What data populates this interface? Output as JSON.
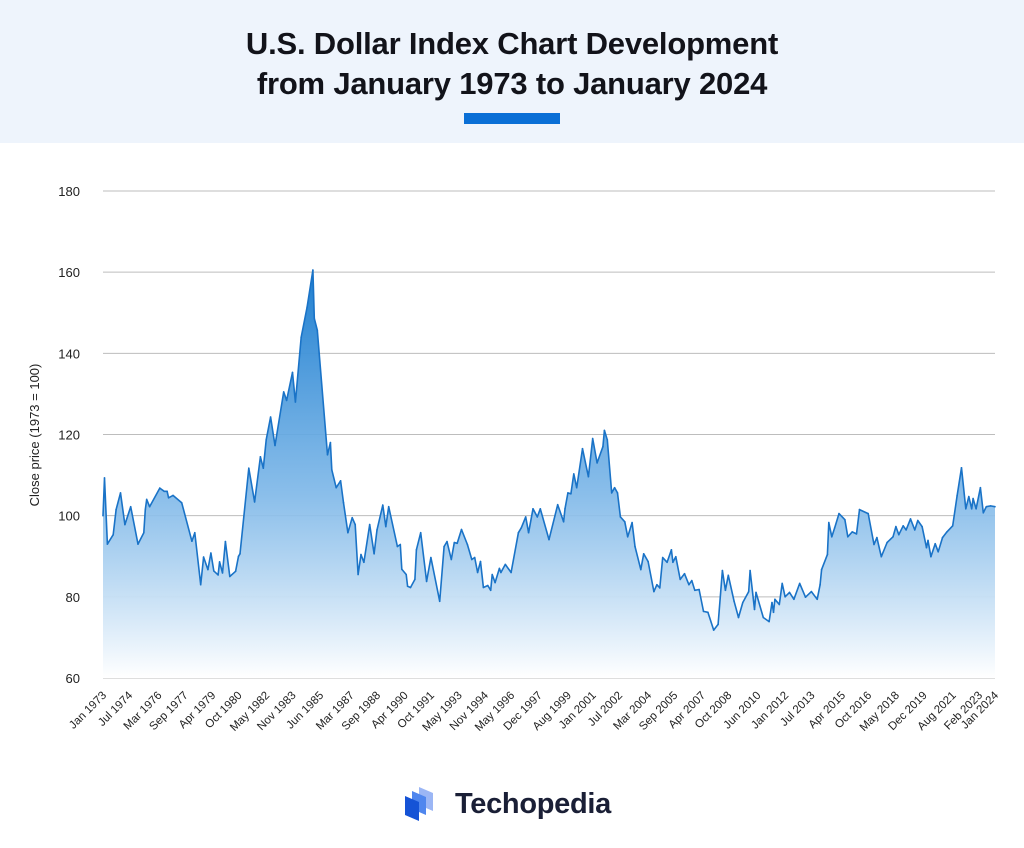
{
  "header": {
    "title_line1": "U.S. Dollar Index Chart Development",
    "title_line2": "from January 1973 to January 2024",
    "accent_color": "#0a6fd6",
    "background_color": "#eef4fc"
  },
  "brand": {
    "name": "Techopedia",
    "icon": "stacked-panels-logo-icon"
  },
  "chart_data": {
    "type": "area",
    "title": "U.S. Dollar Index Chart Development from January 1973 to January 2024",
    "xlabel": "",
    "ylabel": "Close price (1973 = 100)",
    "ylim": [
      60,
      180
    ],
    "yticks": [
      60,
      80,
      100,
      120,
      140,
      160,
      180
    ],
    "xlim": [
      "1973-01",
      "2024-01"
    ],
    "xtick_labels": [
      "Jan 1973",
      "Jul 1974",
      "Mar 1976",
      "Sep 1977",
      "Apr 1979",
      "Oct 1980",
      "May 1982",
      "Nov 1983",
      "Jun 1985",
      "Mar 1987",
      "Sep 1988",
      "Apr 1990",
      "Oct 1991",
      "May 1993",
      "Nov 1994",
      "May 1996",
      "Dec 1997",
      "Aug 1999",
      "Jan 2001",
      "Jul 2002",
      "Mar 2004",
      "Sep 2005",
      "Apr 2007",
      "Oct 2008",
      "Jun 2010",
      "Jan 2012",
      "Jul 2013",
      "Apr 2015",
      "Oct 2016",
      "May 2018",
      "Dec 2019",
      "Aug 2021",
      "Feb 2023",
      "Jan 2024"
    ],
    "grid": true,
    "line_color": "#1a73c7",
    "fill_color_top": "#1f7fd0",
    "fill_color_bottom": "#ffffff",
    "points": [
      [
        "1973-01",
        100
      ],
      [
        "1973-02",
        109.3
      ],
      [
        "1973-04",
        93
      ],
      [
        "1973-08",
        95.3
      ],
      [
        "1973-10",
        101.5
      ],
      [
        "1974-01",
        105.6
      ],
      [
        "1974-04",
        97.8
      ],
      [
        "1974-08",
        102.2
      ],
      [
        "1975-01",
        93
      ],
      [
        "1975-05",
        95.8
      ],
      [
        "1975-06",
        101.5
      ],
      [
        "1975-07",
        104
      ],
      [
        "1975-09",
        102.2
      ],
      [
        "1976-04",
        106.8
      ],
      [
        "1976-07",
        106
      ],
      [
        "1976-09",
        106
      ],
      [
        "1976-10",
        104.4
      ],
      [
        "1977-01",
        105
      ],
      [
        "1977-07",
        103.2
      ],
      [
        "1978-02",
        93.7
      ],
      [
        "1978-04",
        95.8
      ],
      [
        "1978-08",
        83
      ],
      [
        "1978-10",
        89.8
      ],
      [
        "1979-01",
        86.7
      ],
      [
        "1979-03",
        90.8
      ],
      [
        "1979-05",
        86.4
      ],
      [
        "1979-08",
        85.4
      ],
      [
        "1979-09",
        88.6
      ],
      [
        "1979-11",
        85.9
      ],
      [
        "1980-01",
        93.6
      ],
      [
        "1980-04",
        85
      ],
      [
        "1980-08",
        86.3
      ],
      [
        "1980-10",
        90
      ],
      [
        "1980-11",
        90.6
      ],
      [
        "1981-05",
        111.7
      ],
      [
        "1981-09",
        103.4
      ],
      [
        "1982-01",
        114.5
      ],
      [
        "1982-03",
        111.7
      ],
      [
        "1982-05",
        118.7
      ],
      [
        "1982-08",
        124.3
      ],
      [
        "1982-11",
        117.3
      ],
      [
        "1983-05",
        130.5
      ],
      [
        "1983-07",
        128.4
      ],
      [
        "1983-11",
        135.3
      ],
      [
        "1984-01",
        128
      ],
      [
        "1984-05",
        144
      ],
      [
        "1984-09",
        151.4
      ],
      [
        "1985-01",
        160.5
      ],
      [
        "1985-02",
        148.6
      ],
      [
        "1985-04",
        145.7
      ],
      [
        "1985-11",
        115
      ],
      [
        "1986-01",
        118
      ],
      [
        "1986-02",
        111.3
      ],
      [
        "1986-05",
        106.9
      ],
      [
        "1986-08",
        108.6
      ],
      [
        "1986-10",
        103.2
      ],
      [
        "1987-01",
        95.8
      ],
      [
        "1987-04",
        99.5
      ],
      [
        "1987-06",
        97.8
      ],
      [
        "1987-08",
        85.5
      ],
      [
        "1987-10",
        90.4
      ],
      [
        "1987-12",
        88.5
      ],
      [
        "1988-04",
        97.8
      ],
      [
        "1988-07",
        90.6
      ],
      [
        "1988-09",
        96.5
      ],
      [
        "1989-01",
        102.6
      ],
      [
        "1989-03",
        97.3
      ],
      [
        "1989-05",
        102.2
      ],
      [
        "1989-11",
        92.4
      ],
      [
        "1990-01",
        92.9
      ],
      [
        "1990-02",
        86.8
      ],
      [
        "1990-05",
        85.5
      ],
      [
        "1990-06",
        82.6
      ],
      [
        "1990-08",
        82.3
      ],
      [
        "1990-11",
        84.3
      ],
      [
        "1990-12",
        91.6
      ],
      [
        "1991-03",
        95.8
      ],
      [
        "1991-07",
        83.8
      ],
      [
        "1991-10",
        89.7
      ],
      [
        "1992-04",
        78.9
      ],
      [
        "1992-07",
        92.4
      ],
      [
        "1992-09",
        93.6
      ],
      [
        "1992-12",
        89.2
      ],
      [
        "1993-02",
        93.4
      ],
      [
        "1993-04",
        93.2
      ],
      [
        "1993-07",
        96.6
      ],
      [
        "1993-11",
        92.9
      ],
      [
        "1994-02",
        89.2
      ],
      [
        "1994-04",
        89.7
      ],
      [
        "1994-06",
        86
      ],
      [
        "1994-08",
        88.7
      ],
      [
        "1994-10",
        82.3
      ],
      [
        "1995-01",
        82.8
      ],
      [
        "1995-03",
        81.6
      ],
      [
        "1995-04",
        85.5
      ],
      [
        "1995-06",
        83.5
      ],
      [
        "1995-09",
        87
      ],
      [
        "1995-10",
        86
      ],
      [
        "1996-01",
        88
      ],
      [
        "1996-05",
        86
      ],
      [
        "1996-10",
        95.8
      ],
      [
        "1996-12",
        97
      ],
      [
        "1997-03",
        99.7
      ],
      [
        "1997-05",
        95.8
      ],
      [
        "1997-08",
        101.7
      ],
      [
        "1997-11",
        99.7
      ],
      [
        "1998-01",
        101.7
      ],
      [
        "1998-07",
        94.1
      ],
      [
        "1999-01",
        102.7
      ],
      [
        "1999-05",
        98.5
      ],
      [
        "1999-06",
        101.7
      ],
      [
        "1999-08",
        105.6
      ],
      [
        "1999-10",
        105.4
      ],
      [
        "1999-12",
        110.3
      ],
      [
        "2000-02",
        106.9
      ],
      [
        "2000-06",
        116.5
      ],
      [
        "2000-10",
        109.6
      ],
      [
        "2001-01",
        119
      ],
      [
        "2001-04",
        113
      ],
      [
        "2001-08",
        117
      ],
      [
        "2001-09",
        121
      ],
      [
        "2001-11",
        118.7
      ],
      [
        "2002-02",
        105.6
      ],
      [
        "2002-04",
        106.9
      ],
      [
        "2002-06",
        105.6
      ],
      [
        "2002-08",
        99.7
      ],
      [
        "2002-11",
        98.5
      ],
      [
        "2003-01",
        94.8
      ],
      [
        "2003-04",
        98.3
      ],
      [
        "2003-06",
        92.4
      ],
      [
        "2003-10",
        86.7
      ],
      [
        "2003-12",
        90.6
      ],
      [
        "2004-03",
        88.7
      ],
      [
        "2004-07",
        81.3
      ],
      [
        "2004-09",
        83
      ],
      [
        "2004-11",
        82.2
      ],
      [
        "2005-01",
        89.7
      ],
      [
        "2005-04",
        88.5
      ],
      [
        "2005-07",
        91.6
      ],
      [
        "2005-08",
        88.5
      ],
      [
        "2005-10",
        89.9
      ],
      [
        "2006-01",
        84.3
      ],
      [
        "2006-04",
        85.7
      ],
      [
        "2006-07",
        83
      ],
      [
        "2006-09",
        84
      ],
      [
        "2006-11",
        81.6
      ],
      [
        "2007-02",
        81.8
      ],
      [
        "2007-05",
        76.4
      ],
      [
        "2007-08",
        76.2
      ],
      [
        "2007-12",
        71.8
      ],
      [
        "2008-03",
        73.2
      ],
      [
        "2008-06",
        86.5
      ],
      [
        "2008-08",
        81.6
      ],
      [
        "2008-10",
        85.3
      ],
      [
        "2009-02",
        78.9
      ],
      [
        "2009-05",
        74.9
      ],
      [
        "2009-08",
        78.6
      ],
      [
        "2009-12",
        81.3
      ],
      [
        "2010-01",
        86.5
      ],
      [
        "2010-04",
        76.9
      ],
      [
        "2010-05",
        81.1
      ],
      [
        "2010-10",
        74.9
      ],
      [
        "2011-02",
        73.9
      ],
      [
        "2011-04",
        78.6
      ],
      [
        "2011-05",
        76.2
      ],
      [
        "2011-06",
        79.4
      ],
      [
        "2011-09",
        78.1
      ],
      [
        "2011-11",
        83.3
      ],
      [
        "2012-01",
        80
      ],
      [
        "2012-04",
        81.1
      ],
      [
        "2012-07",
        79.4
      ],
      [
        "2012-11",
        83.3
      ],
      [
        "2013-03",
        79.9
      ],
      [
        "2013-07",
        81.3
      ],
      [
        "2013-11",
        79.4
      ],
      [
        "2014-01",
        83
      ],
      [
        "2014-02",
        86.7
      ],
      [
        "2014-06",
        90.4
      ],
      [
        "2014-07",
        98.3
      ],
      [
        "2014-09",
        94.8
      ],
      [
        "2014-11",
        97
      ],
      [
        "2015-02",
        100.5
      ],
      [
        "2015-06",
        99
      ],
      [
        "2015-08",
        94.8
      ],
      [
        "2015-11",
        96
      ],
      [
        "2016-02",
        95.5
      ],
      [
        "2016-04",
        101.5
      ],
      [
        "2016-10",
        100.5
      ],
      [
        "2017-02",
        92.9
      ],
      [
        "2017-04",
        94.6
      ],
      [
        "2017-07",
        89.9
      ],
      [
        "2017-11",
        93.4
      ],
      [
        "2018-03",
        94.8
      ],
      [
        "2018-05",
        97.3
      ],
      [
        "2018-07",
        95.3
      ],
      [
        "2018-10",
        97.5
      ],
      [
        "2018-12",
        96.5
      ],
      [
        "2019-03",
        99.2
      ],
      [
        "2019-06",
        96.5
      ],
      [
        "2019-08",
        98.8
      ],
      [
        "2019-11",
        97.3
      ],
      [
        "2020-02",
        92.1
      ],
      [
        "2020-03",
        93.9
      ],
      [
        "2020-05",
        89.9
      ],
      [
        "2020-08",
        93.1
      ],
      [
        "2020-10",
        91.1
      ],
      [
        "2021-01",
        94.6
      ],
      [
        "2021-04",
        96
      ],
      [
        "2021-08",
        97.5
      ],
      [
        "2021-11",
        104.9
      ],
      [
        "2022-02",
        111.8
      ],
      [
        "2022-05",
        101.7
      ],
      [
        "2022-07",
        104.7
      ],
      [
        "2022-09",
        101.7
      ],
      [
        "2022-10",
        104.2
      ],
      [
        "2022-12",
        101.7
      ],
      [
        "2023-03",
        106.9
      ],
      [
        "2023-05",
        100.7
      ],
      [
        "2023-07",
        102.2
      ],
      [
        "2023-10",
        102.4
      ],
      [
        "2024-01",
        102.2
      ]
    ]
  }
}
